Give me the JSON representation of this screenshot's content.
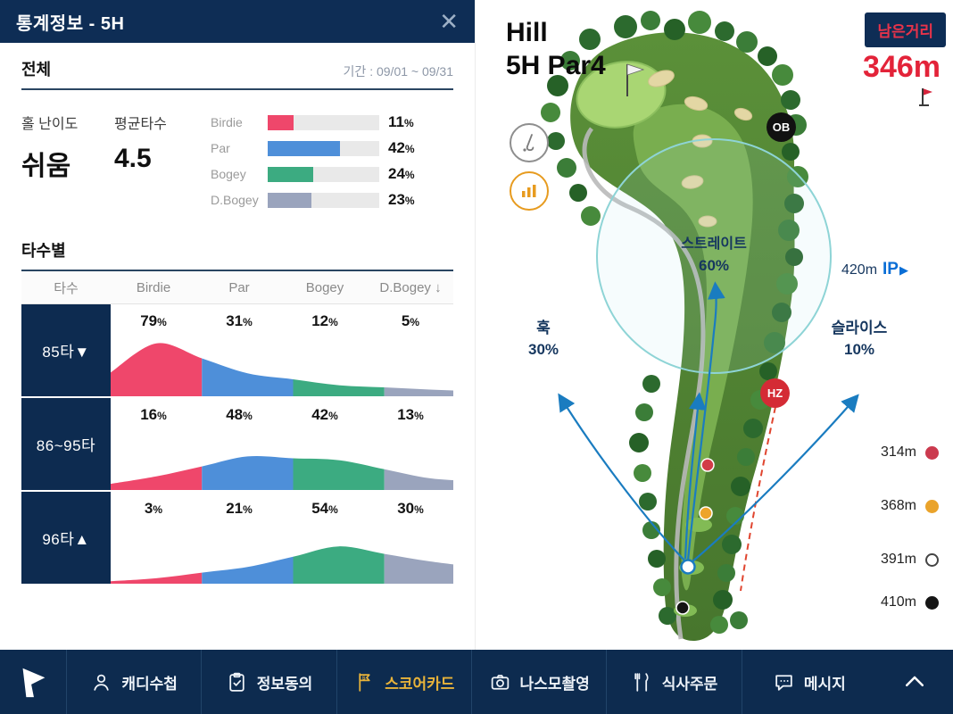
{
  "stats_panel": {
    "title": "통계정보 - 5H",
    "close_glyph": "✕",
    "overall": {
      "section_title": "전체",
      "period": "기간 : 09/01 ~ 09/31",
      "difficulty_label": "홀 난이도",
      "difficulty_value": "쉬움",
      "average_label": "평균타수",
      "average_value": "4.5"
    },
    "by_strokes": {
      "section_title": "타수별"
    }
  },
  "chart_data": [
    {
      "type": "bar",
      "title": "전체 스코어 분포",
      "categories": [
        "Birdie",
        "Par",
        "Bogey",
        "D.Bogey"
      ],
      "values": [
        11,
        42,
        24,
        23
      ],
      "unit": "%",
      "colors": [
        "#ef476b",
        "#4e8fd9",
        "#3cab81",
        "#9aa4bd"
      ],
      "track_color": "#e9e9e9"
    },
    {
      "type": "area",
      "title": "타수별 스코어 분포",
      "columns": [
        "타수",
        "Birdie",
        "Par",
        "Bogey",
        "D.Bogey ↓"
      ],
      "colors": [
        "#ef476b",
        "#4e8fd9",
        "#3cab81",
        "#9aa4bd"
      ],
      "unit": "%",
      "rows": [
        {
          "label": "85타▼",
          "values": [
            79,
            31,
            12,
            5
          ]
        },
        {
          "label": "86~95타",
          "values": [
            16,
            48,
            42,
            13
          ]
        },
        {
          "label": "96타▲",
          "values": [
            3,
            21,
            54,
            30
          ]
        }
      ]
    }
  ],
  "map": {
    "hole_name": "Hill",
    "hole_line2": "5H Par4",
    "remaining_label": "남은거리",
    "remaining_value": "346m",
    "ob_label": "OB",
    "hz_label": "HZ",
    "ip": {
      "distance": "420m",
      "label": "IP",
      "arrow": "▶"
    },
    "straight": {
      "label": "스트레이트",
      "pct": "60%"
    },
    "hook": {
      "label": "훅",
      "pct": "30%"
    },
    "slice": {
      "label": "슬라이스",
      "pct": "10%"
    },
    "distances": [
      {
        "label": "314m",
        "color": "#cb3a4e"
      },
      {
        "label": "368m",
        "color": "#eaa32b"
      },
      {
        "label": "391m",
        "color": "#ffffff"
      },
      {
        "label": "410m",
        "color": "#151515"
      }
    ]
  },
  "nav": {
    "items": [
      {
        "label": "캐디수첩",
        "icon": "caddie-note-icon",
        "active": false
      },
      {
        "label": "정보동의",
        "icon": "consent-icon",
        "active": false
      },
      {
        "label": "스코어카드",
        "icon": "scorecard-icon",
        "active": true
      },
      {
        "label": "나스모촬영",
        "icon": "camera-icon",
        "active": false
      },
      {
        "label": "식사주문",
        "icon": "meal-icon",
        "active": false
      },
      {
        "label": "메시지",
        "icon": "message-icon",
        "active": false
      }
    ]
  }
}
